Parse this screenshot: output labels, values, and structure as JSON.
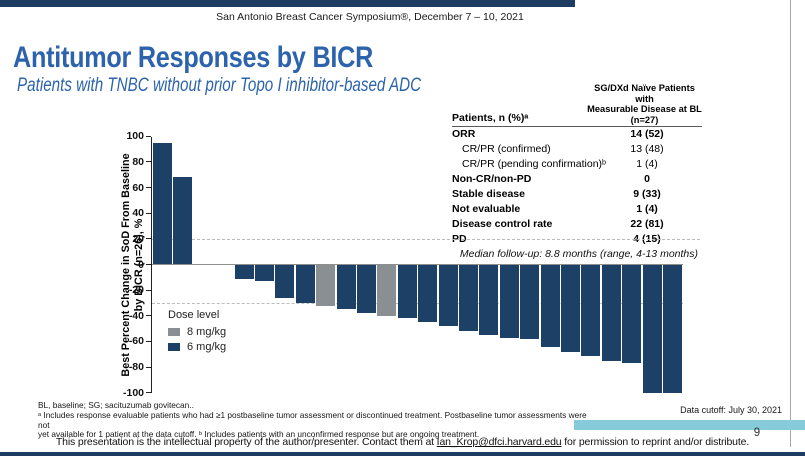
{
  "colors": {
    "navy_chrome": "#1c3c61",
    "bar_blue": "#1d4166",
    "bar_gray": "#8a8f93",
    "title_blue": "#2c63ac",
    "teal_highlight": "#85cbd9"
  },
  "header": {
    "symposium": "San Antonio Breast Cancer Symposium®, December 7 – 10, 2021",
    "title": "Antitumor Responses by BICR",
    "subtitle": "Patients with TNBC without prior Topo I inhibitor-based ADC"
  },
  "table": {
    "col1_header": "Patients, n (%)ᵃ",
    "col2_header_lines": [
      "SG/DXd Naïve Patients with",
      "Measurable Disease at BL",
      "(n=27)"
    ],
    "rows": [
      {
        "label": "ORR",
        "value": "14 (52)",
        "bold": true,
        "indent": false
      },
      {
        "label": "CR/PR (confirmed)",
        "value": "13 (48)",
        "bold": false,
        "indent": true
      },
      {
        "label": "CR/PR (pending confirmation)ᵇ",
        "value": "1 (4)",
        "bold": false,
        "indent": true
      },
      {
        "label": "Non-CR/non-PD",
        "value": "0",
        "bold": true,
        "indent": false
      },
      {
        "label": "Stable disease",
        "value": "9 (33)",
        "bold": true,
        "indent": false
      },
      {
        "label": "Not evaluable",
        "value": "1 (4)",
        "bold": true,
        "indent": false
      },
      {
        "label": "Disease control rate",
        "value": "22 (81)",
        "bold": true,
        "indent": false
      },
      {
        "label": "PD",
        "value": "4 (15)",
        "bold": true,
        "indent": false
      }
    ]
  },
  "median_note": "Median follow-up: 8.8 months (range, 4-13 months)",
  "chart_data": {
    "type": "bar",
    "subtype": "waterfall",
    "ylabel_lines": [
      "Best Percent Change in SoD From Baseline",
      "by BICR (n=26), %"
    ],
    "ylabel": "Best Percent Change in SoD From Baseline by BICR (n=26), %",
    "ylim": [
      -100,
      100
    ],
    "ytick_interval": 20,
    "reference_lines": [
      20,
      -30
    ],
    "grid": false,
    "legend": {
      "title": "Dose level",
      "position": "lower-left",
      "items": [
        {
          "label": "8 mg/kg",
          "color_key": "bar_gray"
        },
        {
          "label": "6 mg/kg",
          "color_key": "bar_blue"
        }
      ]
    },
    "values": [
      95,
      68,
      0,
      0,
      -11,
      -13,
      -26,
      -30,
      -32,
      -35,
      -38,
      -40,
      -42,
      -45,
      -48,
      -52,
      -55,
      -57,
      -58,
      -64,
      -68,
      -71,
      -75,
      -77,
      -100,
      -100
    ],
    "doses": [
      "6",
      "6",
      "6",
      "6",
      "6",
      "6",
      "6",
      "6",
      "8",
      "6",
      "6",
      "8",
      "6",
      "6",
      "6",
      "6",
      "6",
      "6",
      "6",
      "6",
      "6",
      "6",
      "6",
      "6",
      "6",
      "6"
    ]
  },
  "footnotes": {
    "line1": "BL, baseline; SG; sacituzumab govitecan..",
    "line2": "ᵃ Includes response evaluable patients who had ≥1 postbaseline tumor assessment or discontinued treatment. Postbaseline tumor assessments were not",
    "line3": "yet available for 1 patient at the data cutoff. ᵇ Includes patients with an unconfirmed response but are ongoing treatment."
  },
  "data_cutoff": "Data cutoff: July 30, 2021",
  "footer": {
    "copyright_pre": "This presentation is the intellectual property of the author/presenter. Contact them at ",
    "email": "Ian_Krop@dfci.harvard.edu",
    "copyright_post": " for permission to reprint and/or distribute.",
    "page_number": "9"
  }
}
